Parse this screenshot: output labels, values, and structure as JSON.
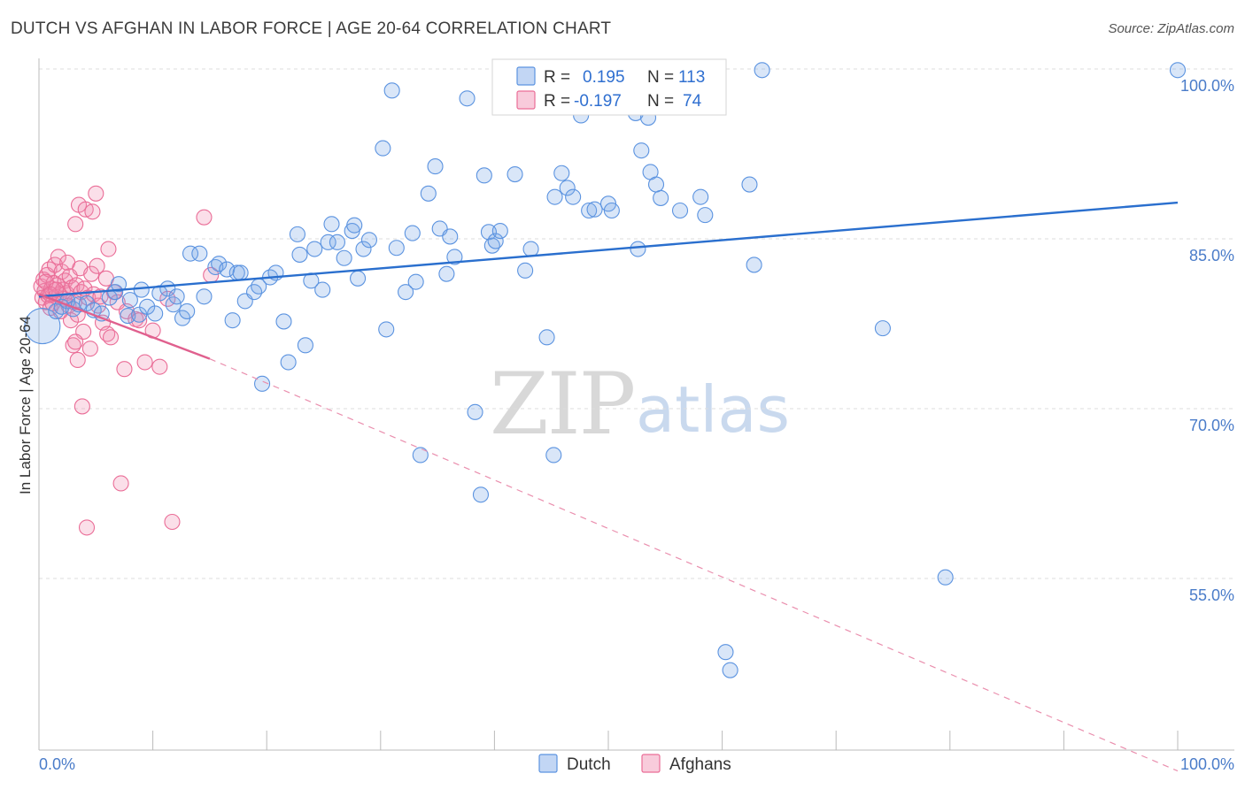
{
  "header": {
    "title": "DUTCH VS AFGHAN IN LABOR FORCE | AGE 20-64 CORRELATION CHART",
    "source": "Source: ZipAtlas.com"
  },
  "colors": {
    "dutch": "#5b93e0",
    "dutch_fill": "rgba(120,165,230,0.28)",
    "afghan": "#ea6d97",
    "afghan_fill": "rgba(240,140,175,0.28)",
    "grid": "#dddddd",
    "tick_label": "#4a7cc9"
  },
  "watermark": {
    "zip": "ZIP",
    "atlas": "atlas"
  },
  "legend": {
    "rows": [
      {
        "r_label": "R =",
        "r_value": "0.195",
        "n_label": "N =",
        "n_value": "113"
      },
      {
        "r_label": "R =",
        "r_value": "-0.197",
        "n_label": "N =",
        "n_value": "74"
      }
    ]
  },
  "bottom_legend": {
    "dutch": "Dutch",
    "afghans": "Afghans"
  },
  "chart_data": {
    "type": "scatter",
    "title": "DUTCH VS AFGHAN IN LABOR FORCE | AGE 20-64 CORRELATION CHART",
    "xlabel": "",
    "ylabel": "In Labor Force | Age 20-64",
    "xlim": [
      0,
      100
    ],
    "ylim": [
      40,
      101.5
    ],
    "x_tick_labels": [
      "0.0%",
      "100.0%"
    ],
    "y_ticks": [
      55,
      70,
      85,
      100
    ],
    "y_tick_labels": [
      "55.0%",
      "70.0%",
      "85.0%",
      "100.0%"
    ],
    "grid": true,
    "series": [
      {
        "name": "Dutch",
        "r": 0.195,
        "n": 113,
        "trend": {
          "x": [
            0,
            100
          ],
          "y": [
            79.9,
            88.2
          ],
          "style": "solid"
        },
        "points": [
          [
            0.5,
            77.3
          ],
          [
            1.5,
            78.6
          ],
          [
            2,
            79
          ],
          [
            2.5,
            79.5
          ],
          [
            3,
            78.8
          ],
          [
            3.5,
            79.2
          ],
          [
            4.2,
            79.3
          ],
          [
            4.8,
            78.7
          ],
          [
            5.5,
            78.4
          ],
          [
            6.2,
            79.8
          ],
          [
            6.7,
            80.3
          ],
          [
            7,
            81
          ],
          [
            7.8,
            78.2
          ],
          [
            8,
            79.6
          ],
          [
            8.8,
            78.3
          ],
          [
            9,
            80.5
          ],
          [
            9.5,
            79
          ],
          [
            10.2,
            78.4
          ],
          [
            10.6,
            80.2
          ],
          [
            11.3,
            80.6
          ],
          [
            11.8,
            79.2
          ],
          [
            12.1,
            79.9
          ],
          [
            12.6,
            78
          ],
          [
            13,
            78.6
          ],
          [
            13.3,
            83.7
          ],
          [
            14.1,
            83.7
          ],
          [
            14.5,
            79.9
          ],
          [
            15.5,
            82.5
          ],
          [
            15.8,
            82.8
          ],
          [
            16.5,
            82.3
          ],
          [
            17,
            77.8
          ],
          [
            17.4,
            82
          ],
          [
            17.7,
            82
          ],
          [
            18.1,
            79.5
          ],
          [
            18.9,
            80.3
          ],
          [
            19.3,
            80.8
          ],
          [
            19.6,
            72.2
          ],
          [
            20.3,
            81.6
          ],
          [
            20.8,
            82
          ],
          [
            21.5,
            77.7
          ],
          [
            21.9,
            74.1
          ],
          [
            22.7,
            85.4
          ],
          [
            22.9,
            83.6
          ],
          [
            23.4,
            75.6
          ],
          [
            23.9,
            81.3
          ],
          [
            24.2,
            84.1
          ],
          [
            24.9,
            80.5
          ],
          [
            25.4,
            84.7
          ],
          [
            25.7,
            86.3
          ],
          [
            26.2,
            84.7
          ],
          [
            26.8,
            83.3
          ],
          [
            27.5,
            85.7
          ],
          [
            27.7,
            86.2
          ],
          [
            28,
            81.5
          ],
          [
            28.5,
            84.1
          ],
          [
            29,
            84.9
          ],
          [
            30.2,
            93
          ],
          [
            30.5,
            77
          ],
          [
            31,
            98.1
          ],
          [
            31.4,
            84.2
          ],
          [
            32.2,
            80.3
          ],
          [
            32.8,
            85.5
          ],
          [
            33.1,
            81.2
          ],
          [
            33.5,
            65.9
          ],
          [
            34.2,
            89
          ],
          [
            34.8,
            91.4
          ],
          [
            35.2,
            85.9
          ],
          [
            35.8,
            81.9
          ],
          [
            36.1,
            85.2
          ],
          [
            36.5,
            83.4
          ],
          [
            37.6,
            97.4
          ],
          [
            38.3,
            69.7
          ],
          [
            38.8,
            62.4
          ],
          [
            39.1,
            90.6
          ],
          [
            39.5,
            85.6
          ],
          [
            39.8,
            84.4
          ],
          [
            40.1,
            84.8
          ],
          [
            40.5,
            85.7
          ],
          [
            41.8,
            90.7
          ],
          [
            42.7,
            82.2
          ],
          [
            43.2,
            84.1
          ],
          [
            44.6,
            76.3
          ],
          [
            45.2,
            65.9
          ],
          [
            45.3,
            88.7
          ],
          [
            45.9,
            90.8
          ],
          [
            46.4,
            89.5
          ],
          [
            46.9,
            88.7
          ],
          [
            47.6,
            95.9
          ],
          [
            48.3,
            87.5
          ],
          [
            48.8,
            87.6
          ],
          [
            50,
            88.1
          ],
          [
            50.3,
            87.5
          ],
          [
            52.4,
            96.1
          ],
          [
            52.6,
            84.1
          ],
          [
            52.9,
            92.8
          ],
          [
            53.5,
            95.7
          ],
          [
            53.7,
            90.9
          ],
          [
            54.2,
            89.8
          ],
          [
            54.6,
            88.6
          ],
          [
            56.3,
            87.5
          ],
          [
            58.1,
            88.7
          ],
          [
            58.5,
            87.1
          ],
          [
            60.3,
            48.5
          ],
          [
            60.7,
            46.9
          ],
          [
            62.4,
            89.8
          ],
          [
            62.8,
            82.7
          ],
          [
            63.5,
            99.9
          ],
          [
            74.1,
            77.1
          ],
          [
            79.6,
            55.1
          ],
          [
            100,
            99.9
          ]
        ]
      },
      {
        "name": "Afghans",
        "r": -0.197,
        "n": 74,
        "trend": {
          "x_solid": [
            0,
            15
          ],
          "y_solid": [
            80.1,
            74.4
          ],
          "x_dashed": [
            15,
            100
          ],
          "y_dashed": [
            74.4,
            38
          ]
        },
        "points": [
          [
            0.2,
            80.8
          ],
          [
            0.3,
            79.8
          ],
          [
            0.4,
            81.4
          ],
          [
            0.5,
            80.4
          ],
          [
            0.6,
            79.4
          ],
          [
            0.7,
            81.8
          ],
          [
            0.8,
            80
          ],
          [
            0.9,
            82.3
          ],
          [
            1,
            78.9
          ],
          [
            1.1,
            80.6
          ],
          [
            1.2,
            79.3
          ],
          [
            1.3,
            81.1
          ],
          [
            1.4,
            82.7
          ],
          [
            1.5,
            79.9
          ],
          [
            1.6,
            80.9
          ],
          [
            1.7,
            83.4
          ],
          [
            1.8,
            80.1
          ],
          [
            1.9,
            78.6
          ],
          [
            2,
            82.1
          ],
          [
            2.1,
            80.5
          ],
          [
            2.2,
            79.7
          ],
          [
            2.3,
            81.3
          ],
          [
            2.4,
            80.2
          ],
          [
            2.5,
            82.9
          ],
          [
            2.6,
            79.1
          ],
          [
            2.7,
            81.7
          ],
          [
            2.8,
            77.8
          ],
          [
            2.9,
            80.7
          ],
          [
            3,
            75.6
          ],
          [
            3.1,
            79.4
          ],
          [
            3.2,
            86.3
          ],
          [
            3.3,
            80.9
          ],
          [
            3.4,
            78.3
          ],
          [
            3.5,
            88
          ],
          [
            3.6,
            82.4
          ],
          [
            3.7,
            80.3
          ],
          [
            3.8,
            70.2
          ],
          [
            3.9,
            76.8
          ],
          [
            4,
            80.6
          ],
          [
            4.1,
            87.6
          ],
          [
            4.2,
            59.5
          ],
          [
            4.3,
            79.8
          ],
          [
            4.5,
            75.3
          ],
          [
            4.6,
            81.9
          ],
          [
            4.7,
            87.4
          ],
          [
            4.8,
            80.1
          ],
          [
            3.2,
            75.9
          ],
          [
            3.4,
            74.3
          ],
          [
            5,
            89
          ],
          [
            5.1,
            82.6
          ],
          [
            5.2,
            79.1
          ],
          [
            5.4,
            79.9
          ],
          [
            5.6,
            77.6
          ],
          [
            5.9,
            81.5
          ],
          [
            6,
            76.6
          ],
          [
            6.1,
            84.1
          ],
          [
            6.3,
            76.3
          ],
          [
            6.6,
            80.3
          ],
          [
            6.9,
            79.4
          ],
          [
            7.2,
            63.4
          ],
          [
            7.5,
            73.5
          ],
          [
            7.7,
            78.6
          ],
          [
            8.5,
            77.9
          ],
          [
            8.8,
            77.8
          ],
          [
            9.3,
            74.1
          ],
          [
            10,
            76.9
          ],
          [
            10.6,
            73.7
          ],
          [
            11.3,
            79.7
          ],
          [
            11.7,
            60
          ],
          [
            14.5,
            86.9
          ],
          [
            15.1,
            81.8
          ],
          [
            0.6,
            81.2
          ],
          [
            1.0,
            80.1
          ],
          [
            1.5,
            80.5
          ]
        ]
      }
    ]
  }
}
